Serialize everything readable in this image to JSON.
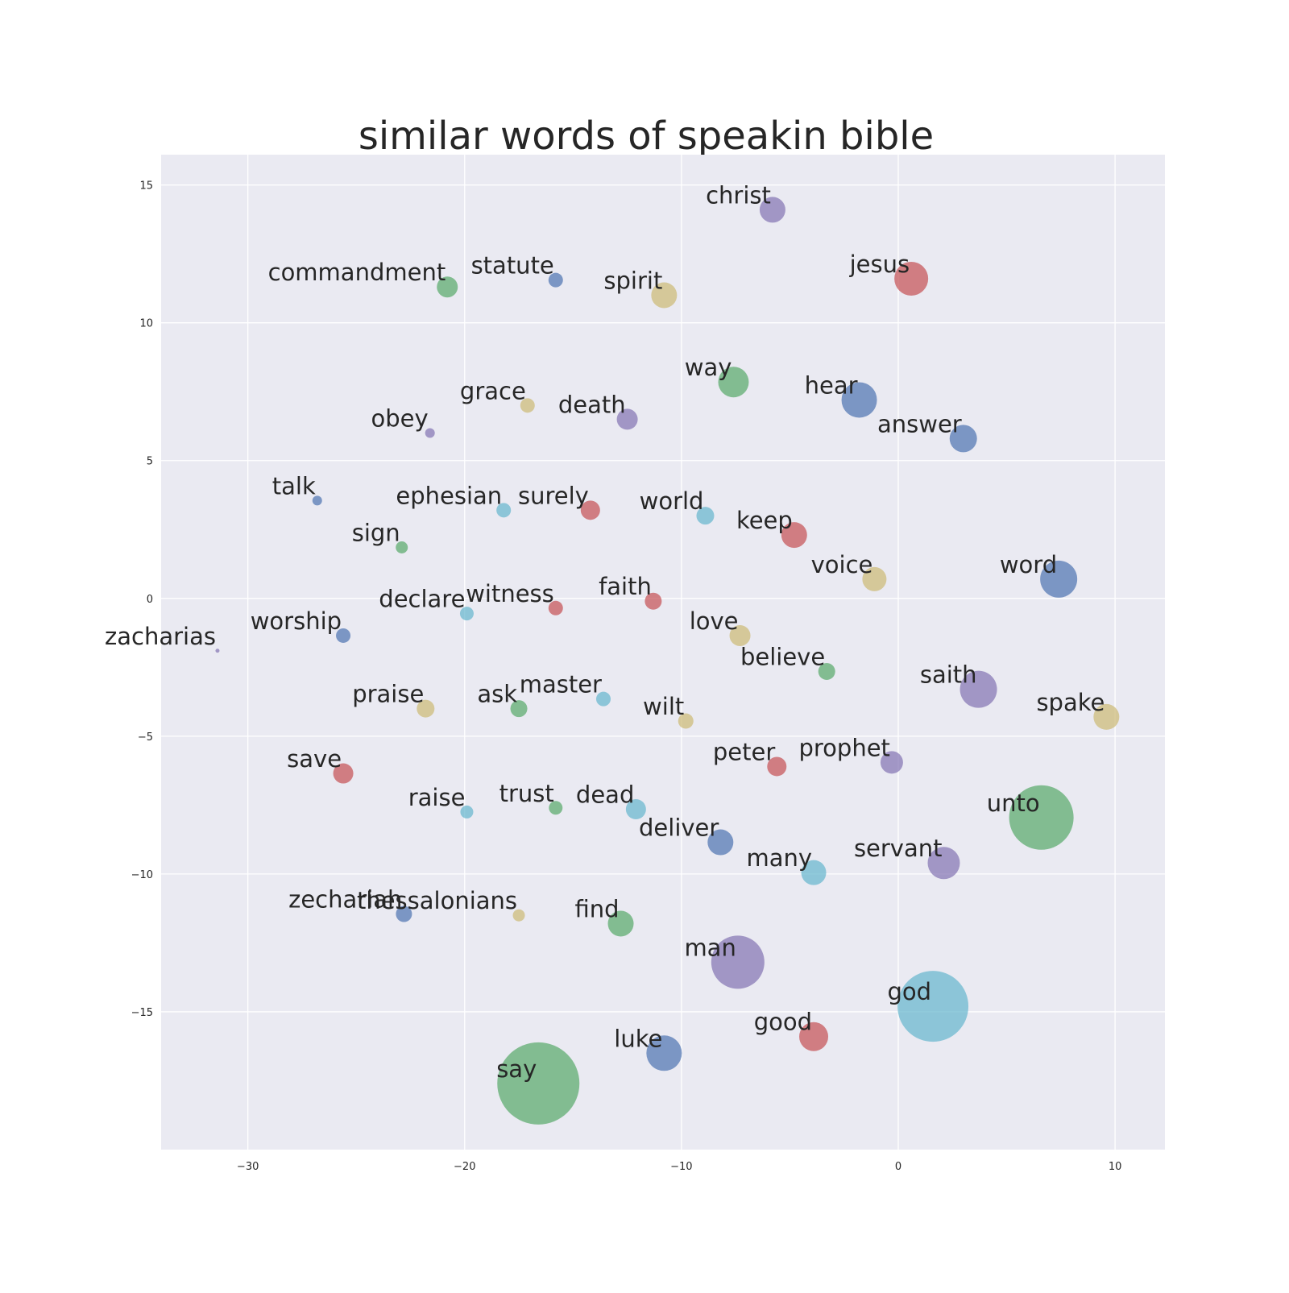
{
  "chart_data": {
    "type": "scatter",
    "title": "similar words of speakin bible",
    "xlabel": "",
    "ylabel": "",
    "xlim": [
      -34,
      12.3
    ],
    "ylim": [
      -20,
      16.1
    ],
    "grid": true,
    "xticks": [
      -30,
      -20,
      -10,
      0,
      10
    ],
    "yticks": [
      15,
      10,
      5,
      0,
      -5,
      -10,
      -15
    ],
    "xtick_labels": [
      "−30",
      "−20",
      "−10",
      "0",
      "10"
    ],
    "ytick_labels": [
      "15",
      "10",
      "5",
      "0",
      "−5",
      "−10",
      "−15"
    ],
    "colors": {
      "background": "#eaeaf2",
      "grid": "#ffffff",
      "blue": "#4c72b0",
      "green": "#55a868",
      "red": "#c44e52",
      "purple": "#8172b2",
      "yellow": "#ccb974",
      "cyan": "#64b5cd"
    },
    "points": [
      {
        "word": "christ",
        "x": -5.8,
        "y": 14.1,
        "size": 16,
        "color": "purple"
      },
      {
        "word": "commandment",
        "x": -20.8,
        "y": 11.3,
        "size": 13,
        "color": "green"
      },
      {
        "word": "statute",
        "x": -15.8,
        "y": 11.55,
        "size": 9,
        "color": "blue"
      },
      {
        "word": "spirit",
        "x": -10.8,
        "y": 11.0,
        "size": 16,
        "color": "yellow"
      },
      {
        "word": "jesus",
        "x": 0.6,
        "y": 11.6,
        "size": 21,
        "color": "red"
      },
      {
        "word": "way",
        "x": -7.6,
        "y": 7.85,
        "size": 19,
        "color": "green"
      },
      {
        "word": "hear",
        "x": -1.8,
        "y": 7.2,
        "size": 22,
        "color": "blue"
      },
      {
        "word": "grace",
        "x": -17.1,
        "y": 7.0,
        "size": 9,
        "color": "yellow"
      },
      {
        "word": "death",
        "x": -12.5,
        "y": 6.5,
        "size": 13,
        "color": "purple"
      },
      {
        "word": "obey",
        "x": -21.6,
        "y": 6.0,
        "size": 6,
        "color": "purple"
      },
      {
        "word": "answer",
        "x": 3.0,
        "y": 5.8,
        "size": 17,
        "color": "blue"
      },
      {
        "word": "talk",
        "x": -26.8,
        "y": 3.55,
        "size": 6,
        "color": "blue"
      },
      {
        "word": "ephesian",
        "x": -18.2,
        "y": 3.2,
        "size": 9,
        "color": "cyan"
      },
      {
        "word": "surely",
        "x": -14.2,
        "y": 3.2,
        "size": 12,
        "color": "red"
      },
      {
        "word": "world",
        "x": -8.9,
        "y": 3.0,
        "size": 11,
        "color": "cyan"
      },
      {
        "word": "keep",
        "x": -4.8,
        "y": 2.3,
        "size": 16,
        "color": "red"
      },
      {
        "word": "sign",
        "x": -22.9,
        "y": 1.85,
        "size": 7.5,
        "color": "green"
      },
      {
        "word": "voice",
        "x": -1.1,
        "y": 0.7,
        "size": 15,
        "color": "yellow"
      },
      {
        "word": "word",
        "x": 7.4,
        "y": 0.7,
        "size": 23,
        "color": "blue"
      },
      {
        "word": "faith",
        "x": -11.3,
        "y": -0.1,
        "size": 10.5,
        "color": "red"
      },
      {
        "word": "declare",
        "x": -19.9,
        "y": -0.55,
        "size": 8.5,
        "color": "cyan"
      },
      {
        "word": "witness",
        "x": -15.8,
        "y": -0.35,
        "size": 9,
        "color": "red"
      },
      {
        "word": "worship",
        "x": -25.6,
        "y": -1.35,
        "size": 9,
        "color": "blue"
      },
      {
        "word": "love",
        "x": -7.3,
        "y": -1.35,
        "size": 13,
        "color": "yellow"
      },
      {
        "word": "zacharias",
        "x": -31.4,
        "y": -1.9,
        "size": 2.5,
        "color": "purple"
      },
      {
        "word": "believe",
        "x": -3.3,
        "y": -2.65,
        "size": 10.5,
        "color": "green"
      },
      {
        "word": "saith",
        "x": 3.7,
        "y": -3.3,
        "size": 23,
        "color": "purple"
      },
      {
        "word": "praise",
        "x": -21.8,
        "y": -4.0,
        "size": 11,
        "color": "yellow"
      },
      {
        "word": "ask",
        "x": -17.5,
        "y": -4.0,
        "size": 10.5,
        "color": "green"
      },
      {
        "word": "master",
        "x": -13.6,
        "y": -3.65,
        "size": 9,
        "color": "cyan"
      },
      {
        "word": "wilt",
        "x": -9.8,
        "y": -4.45,
        "size": 9.5,
        "color": "yellow"
      },
      {
        "word": "spake",
        "x": 9.6,
        "y": -4.3,
        "size": 16,
        "color": "yellow"
      },
      {
        "word": "save",
        "x": -25.6,
        "y": -6.35,
        "size": 12.5,
        "color": "red"
      },
      {
        "word": "peter",
        "x": -5.6,
        "y": -6.1,
        "size": 12,
        "color": "red"
      },
      {
        "word": "prophet",
        "x": -0.3,
        "y": -5.95,
        "size": 14,
        "color": "purple"
      },
      {
        "word": "raise",
        "x": -19.9,
        "y": -7.75,
        "size": 8,
        "color": "cyan"
      },
      {
        "word": "trust",
        "x": -15.8,
        "y": -7.6,
        "size": 8.5,
        "color": "green"
      },
      {
        "word": "dead",
        "x": -12.1,
        "y": -7.65,
        "size": 12.5,
        "color": "cyan"
      },
      {
        "word": "unto",
        "x": 6.6,
        "y": -7.95,
        "size": 40,
        "color": "green"
      },
      {
        "word": "deliver",
        "x": -8.2,
        "y": -8.85,
        "size": 16,
        "color": "blue"
      },
      {
        "word": "servant",
        "x": 2.1,
        "y": -9.6,
        "size": 20,
        "color": "purple"
      },
      {
        "word": "many",
        "x": -3.9,
        "y": -9.95,
        "size": 15.5,
        "color": "cyan"
      },
      {
        "word": "zechariah",
        "x": -22.8,
        "y": -11.45,
        "size": 10,
        "color": "blue"
      },
      {
        "word": "thessalonians",
        "x": -17.5,
        "y": -11.5,
        "size": 7.5,
        "color": "yellow"
      },
      {
        "word": "find",
        "x": -12.8,
        "y": -11.8,
        "size": 16,
        "color": "green"
      },
      {
        "word": "man",
        "x": -7.4,
        "y": -13.2,
        "size": 33,
        "color": "purple"
      },
      {
        "word": "god",
        "x": 1.6,
        "y": -14.8,
        "size": 44,
        "color": "cyan"
      },
      {
        "word": "good",
        "x": -3.9,
        "y": -15.9,
        "size": 18,
        "color": "red"
      },
      {
        "word": "luke",
        "x": -10.8,
        "y": -16.5,
        "size": 22,
        "color": "blue"
      },
      {
        "word": "say",
        "x": -16.6,
        "y": -17.6,
        "size": 51,
        "color": "green"
      }
    ]
  }
}
